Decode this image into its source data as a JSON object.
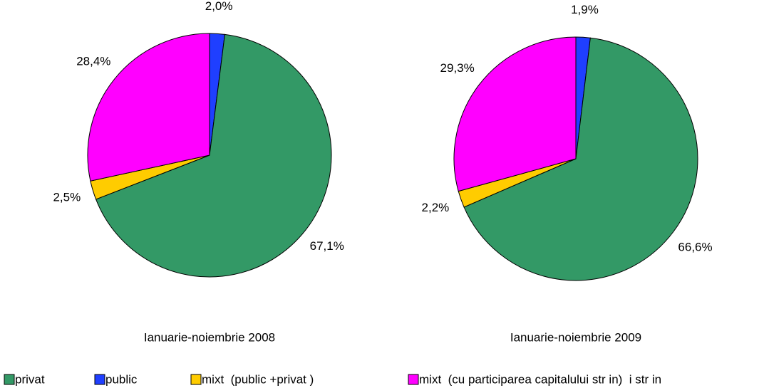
{
  "legend": {
    "labels": [
      "privat",
      "public",
      "mixt  (public +privat )",
      "mixt  (cu participarea capitalului str in)  i str in"
    ],
    "colors": [
      "#339966",
      "#1f3fff",
      "#ffcc00",
      "#ff00ff"
    ]
  },
  "chart_data": [
    {
      "type": "pie",
      "title": "Ianuarie-noiembrie 2008",
      "values": [
        67.1,
        2.0,
        2.5,
        28.4
      ],
      "value_labels": [
        "67,1%",
        "2,0%",
        "2,5%",
        "28,4%"
      ]
    },
    {
      "type": "pie",
      "title": "Ianuarie-noiembrie 2009",
      "values": [
        66.6,
        1.9,
        2.2,
        29.3
      ],
      "value_labels": [
        "66,6%",
        "1,9%",
        "2,2%",
        "29,3%"
      ]
    }
  ]
}
